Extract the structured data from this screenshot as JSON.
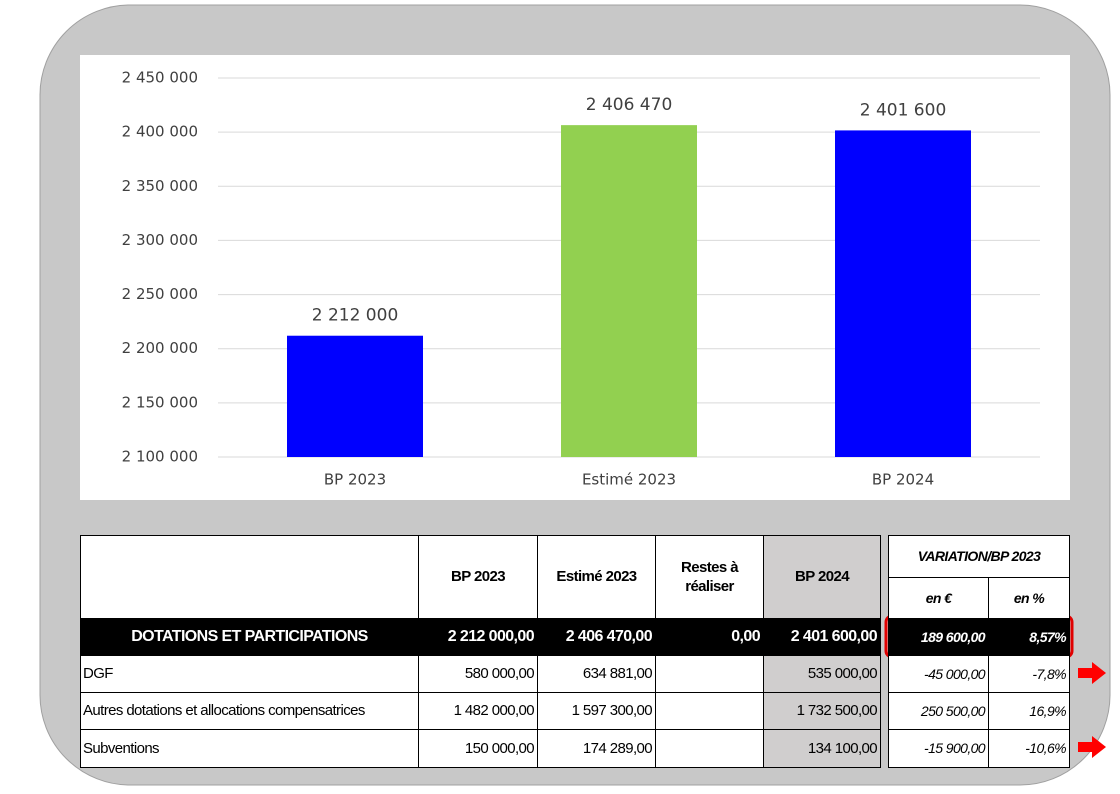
{
  "chart_data": {
    "type": "bar",
    "categories": [
      "BP 2023",
      "Estimé 2023",
      "BP 2024"
    ],
    "values": [
      2212000,
      2406470,
      2401600
    ],
    "value_labels": [
      "2 212 000",
      "2 406 470",
      "2 401 600"
    ],
    "colors": [
      "#0000ff",
      "#92d050",
      "#0000ff"
    ],
    "ylim": [
      2100000,
      2450000
    ],
    "yticks": [
      {
        "value": 2100000,
        "label": "2 100 000"
      },
      {
        "value": 2150000,
        "label": "2 150 000"
      },
      {
        "value": 2200000,
        "label": "2 200 000"
      },
      {
        "value": 2250000,
        "label": "2 250 000"
      },
      {
        "value": 2300000,
        "label": "2 300 000"
      },
      {
        "value": 2350000,
        "label": "2 350 000"
      },
      {
        "value": 2400000,
        "label": "2 400 000"
      },
      {
        "value": 2450000,
        "label": "2 450 000"
      }
    ],
    "grid": true
  },
  "table": {
    "headers": [
      "BP 2023",
      "Estimé 2023",
      "Restes à réaliser",
      "BP 2024"
    ],
    "variation_header": "VARIATION/BP 2023",
    "variation_subheaders": [
      "en €",
      "en %"
    ],
    "total": {
      "label": "DOTATIONS ET PARTICIPATIONS",
      "bp2023": "2 212 000,00",
      "estime2023": "2 406 470,00",
      "restes": "0,00",
      "bp2024": "2 401 600,00",
      "var_eur": "189 600,00",
      "var_pct": "8,57%"
    },
    "rows": [
      {
        "label": "DGF",
        "bp2023": "580 000,00",
        "estime2023": "634 881,00",
        "bp2024": "535 000,00",
        "var_eur": "-45 000,00",
        "var_pct": "-7,8%"
      },
      {
        "label": "Autres dotations et allocations compensatrices",
        "bp2023": "1 482 000,00",
        "estime2023": "1 597 300,00",
        "bp2024": "1 732 500,00",
        "var_eur": "250 500,00",
        "var_pct": "16,9%"
      },
      {
        "label": "Subventions",
        "bp2023": "150 000,00",
        "estime2023": "174 289,00",
        "bp2024": "134 100,00",
        "var_eur": "-15 900,00",
        "var_pct": "-10,6%"
      }
    ]
  }
}
